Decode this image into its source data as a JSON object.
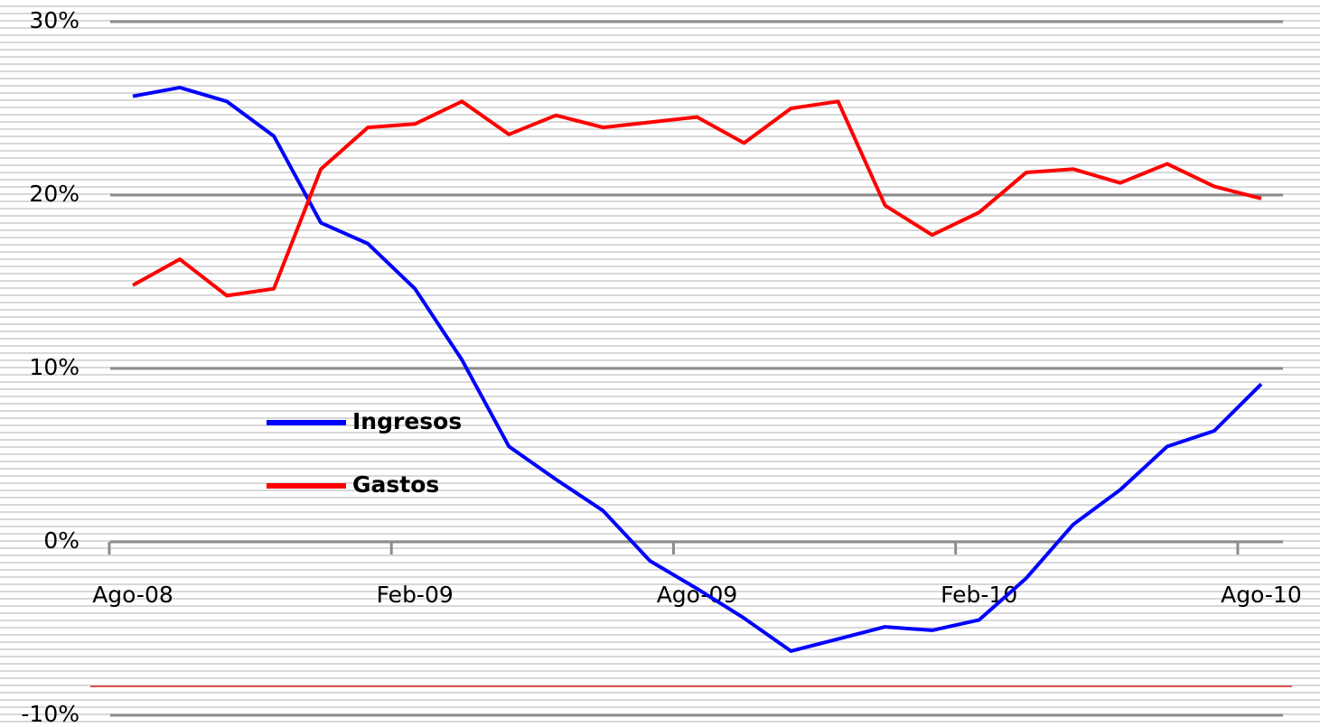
{
  "chart_data": {
    "type": "line",
    "categories": [
      "Ago-08",
      null,
      null,
      null,
      null,
      null,
      "Feb-09",
      null,
      null,
      null,
      null,
      null,
      "Ago-09",
      null,
      null,
      null,
      null,
      null,
      "Feb-10",
      null,
      null,
      null,
      null,
      null,
      "Ago-10"
    ],
    "series": [
      {
        "name": "Ingresos",
        "color": "#0000ff",
        "values": [
          25.7,
          26.2,
          25.4,
          23.4,
          18.4,
          17.2,
          14.6,
          10.5,
          5.5,
          3.6,
          1.8,
          -1.1,
          -2.7,
          -4.4,
          -6.3,
          -5.6,
          -4.9,
          -5.1,
          -4.5,
          -2.1,
          1.0,
          3.0,
          5.5,
          6.4,
          9.1
        ]
      },
      {
        "name": "Gastos",
        "color": "#ff0000",
        "values": [
          14.8,
          16.3,
          14.2,
          14.6,
          21.5,
          23.9,
          24.1,
          25.4,
          23.5,
          24.6,
          23.9,
          24.2,
          24.5,
          23.0,
          25.0,
          25.4,
          19.4,
          17.7,
          19.0,
          21.3,
          21.5,
          20.7,
          21.8,
          20.5,
          19.8
        ]
      }
    ],
    "ylim": [
      -10,
      30
    ],
    "yticks": [
      {
        "value": -10,
        "label": "-10%"
      },
      {
        "value": 0,
        "label": "0%"
      },
      {
        "value": 10,
        "label": "10%"
      },
      {
        "value": 20,
        "label": "20%"
      },
      {
        "value": 30,
        "label": "30%"
      }
    ],
    "grid": true,
    "legend": "left"
  }
}
